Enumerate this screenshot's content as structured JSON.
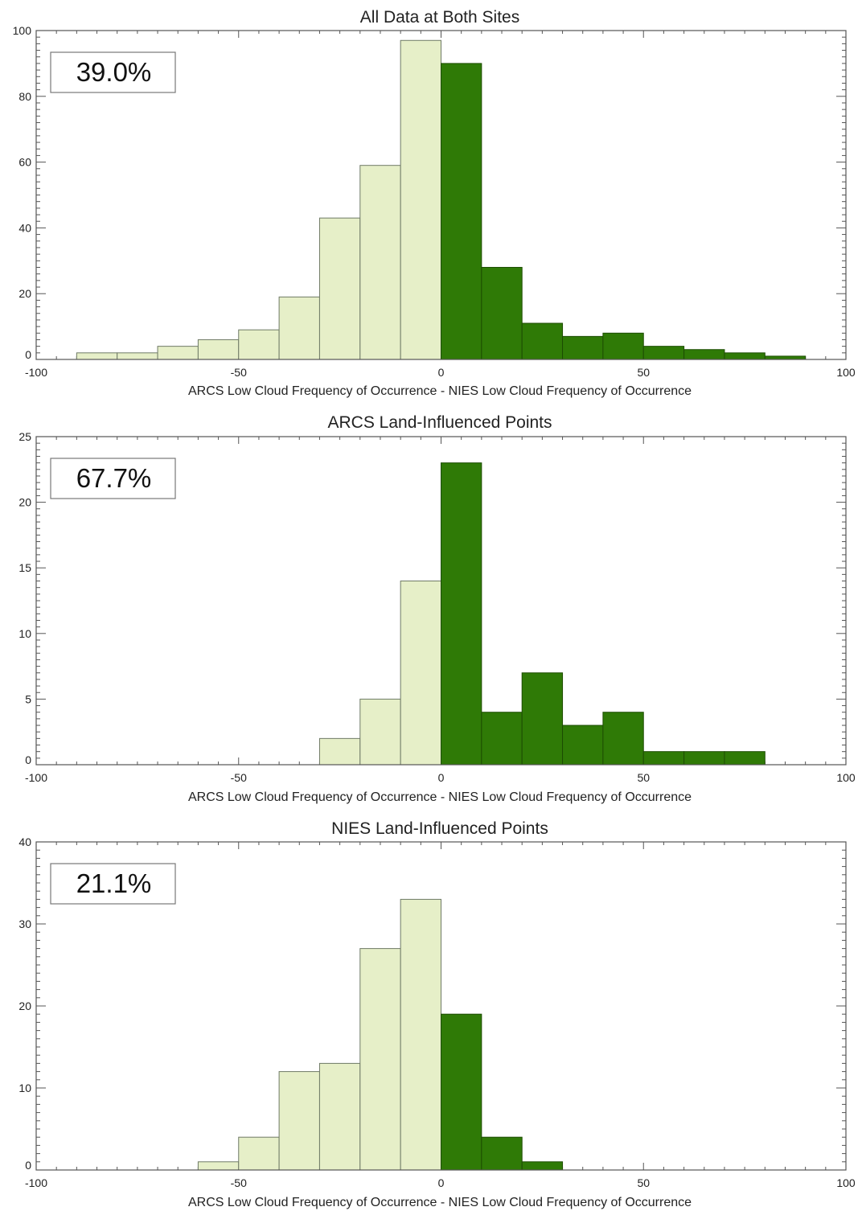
{
  "colors": {
    "negative_bar": "#e6efc8",
    "positive_bar": "#2f7a06",
    "axis": "#555555"
  },
  "chart_data": [
    {
      "type": "bar",
      "title": "All Data at Both Sites",
      "xlabel": "ARCS Low Cloud Frequency of Occurrence - NIES Low Cloud Frequency of Occurrence",
      "ylabel": "",
      "annotation": "39.0%",
      "xlim": [
        -100,
        100
      ],
      "ylim": [
        0,
        100
      ],
      "xticks": [
        "-100",
        "-50",
        "0",
        "50",
        "100"
      ],
      "yticks": [
        "0",
        "20",
        "40",
        "60",
        "80",
        "100"
      ],
      "bins": [
        {
          "x0": -90,
          "x1": -80,
          "value": 2
        },
        {
          "x0": -80,
          "x1": -70,
          "value": 2
        },
        {
          "x0": -70,
          "x1": -60,
          "value": 4
        },
        {
          "x0": -60,
          "x1": -50,
          "value": 6
        },
        {
          "x0": -50,
          "x1": -40,
          "value": 9
        },
        {
          "x0": -40,
          "x1": -30,
          "value": 19
        },
        {
          "x0": -30,
          "x1": -20,
          "value": 43
        },
        {
          "x0": -20,
          "x1": -10,
          "value": 59
        },
        {
          "x0": -10,
          "x1": 0,
          "value": 97
        },
        {
          "x0": 0,
          "x1": 10,
          "value": 90
        },
        {
          "x0": 10,
          "x1": 20,
          "value": 28
        },
        {
          "x0": 20,
          "x1": 30,
          "value": 11
        },
        {
          "x0": 30,
          "x1": 40,
          "value": 7
        },
        {
          "x0": 40,
          "x1": 50,
          "value": 8
        },
        {
          "x0": 50,
          "x1": 60,
          "value": 4
        },
        {
          "x0": 60,
          "x1": 70,
          "value": 3
        },
        {
          "x0": 70,
          "x1": 80,
          "value": 2
        },
        {
          "x0": 80,
          "x1": 90,
          "value": 1
        }
      ]
    },
    {
      "type": "bar",
      "title": "ARCS Land-Influenced Points",
      "xlabel": "ARCS Low Cloud Frequency of Occurrence - NIES Low Cloud Frequency of Occurrence",
      "ylabel": "",
      "annotation": "67.7%",
      "xlim": [
        -100,
        100
      ],
      "ylim": [
        0,
        25
      ],
      "xticks": [
        "-100",
        "-50",
        "0",
        "50",
        "100"
      ],
      "yticks": [
        "0",
        "5",
        "10",
        "15",
        "20",
        "25"
      ],
      "bins": [
        {
          "x0": -30,
          "x1": -20,
          "value": 2
        },
        {
          "x0": -20,
          "x1": -10,
          "value": 5
        },
        {
          "x0": -10,
          "x1": 0,
          "value": 14
        },
        {
          "x0": 0,
          "x1": 10,
          "value": 23
        },
        {
          "x0": 10,
          "x1": 20,
          "value": 4
        },
        {
          "x0": 20,
          "x1": 30,
          "value": 7
        },
        {
          "x0": 30,
          "x1": 40,
          "value": 3
        },
        {
          "x0": 40,
          "x1": 50,
          "value": 4
        },
        {
          "x0": 50,
          "x1": 60,
          "value": 1
        },
        {
          "x0": 60,
          "x1": 70,
          "value": 1
        },
        {
          "x0": 70,
          "x1": 80,
          "value": 1
        }
      ]
    },
    {
      "type": "bar",
      "title": "NIES Land-Influenced Points",
      "xlabel": "ARCS Low Cloud Frequency of Occurrence - NIES Low Cloud Frequency of Occurrence",
      "ylabel": "",
      "annotation": "21.1%",
      "xlim": [
        -100,
        100
      ],
      "ylim": [
        0,
        40
      ],
      "xticks": [
        "-100",
        "-50",
        "0",
        "50",
        "100"
      ],
      "yticks": [
        "0",
        "10",
        "20",
        "30",
        "40"
      ],
      "bins": [
        {
          "x0": -60,
          "x1": -50,
          "value": 1
        },
        {
          "x0": -50,
          "x1": -40,
          "value": 4
        },
        {
          "x0": -40,
          "x1": -30,
          "value": 12
        },
        {
          "x0": -30,
          "x1": -20,
          "value": 13
        },
        {
          "x0": -20,
          "x1": -10,
          "value": 27
        },
        {
          "x0": -10,
          "x1": 0,
          "value": 33
        },
        {
          "x0": 0,
          "x1": 10,
          "value": 19
        },
        {
          "x0": 10,
          "x1": 20,
          "value": 4
        },
        {
          "x0": 20,
          "x1": 30,
          "value": 1
        }
      ]
    }
  ]
}
